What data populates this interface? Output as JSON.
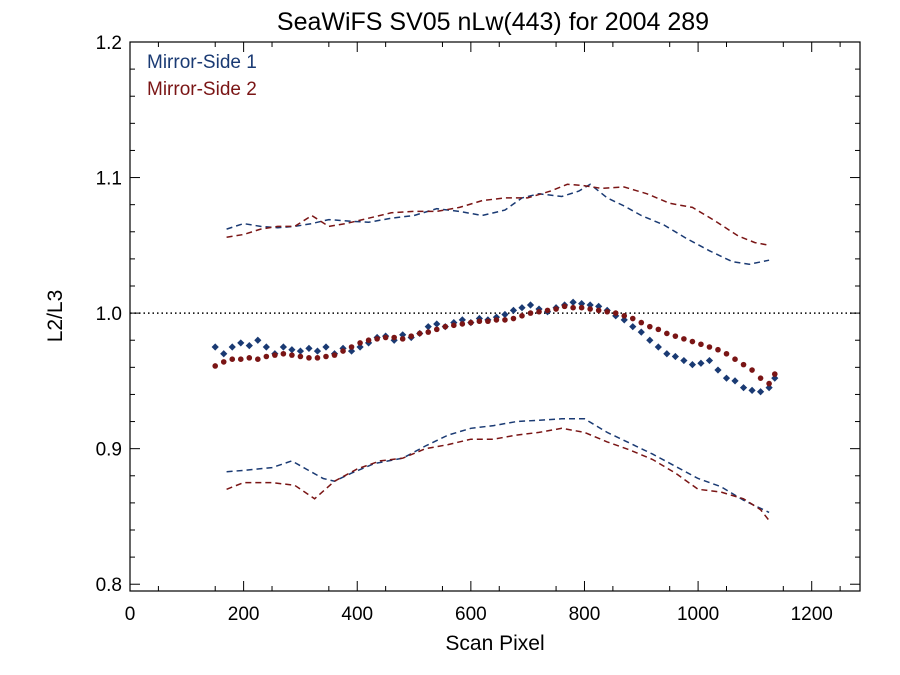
{
  "chart_data": {
    "type": "scatter",
    "title": "SeaWiFS SV05 nLw(443) for 2004 289",
    "xlabel": "Scan Pixel",
    "ylabel": "L2/L3",
    "xlim": [
      0,
      1285
    ],
    "ylim": [
      0.795,
      1.2
    ],
    "xticks": [
      0,
      200,
      400,
      600,
      800,
      1000,
      1200
    ],
    "xtick_labels": [
      "0",
      "200",
      "400",
      "600",
      "800",
      "1000",
      "1200"
    ],
    "yticks": [
      0.8,
      0.9,
      1.0,
      1.1,
      1.2
    ],
    "ytick_labels": [
      "0.8",
      "0.9",
      "1.0",
      "1.1",
      "1.2"
    ],
    "reference_line": {
      "y": 1.0,
      "style": "dotted"
    },
    "legend_position": "top-left",
    "grid": false,
    "series": [
      {
        "name": "Mirror-Side 1",
        "color": "#1a3a73",
        "points": [
          [
            150,
            0.975
          ],
          [
            165,
            0.97
          ],
          [
            180,
            0.975
          ],
          [
            195,
            0.978
          ],
          [
            210,
            0.976
          ],
          [
            225,
            0.98
          ],
          [
            240,
            0.975
          ],
          [
            255,
            0.97
          ],
          [
            270,
            0.975
          ],
          [
            285,
            0.973
          ],
          [
            300,
            0.972
          ],
          [
            315,
            0.974
          ],
          [
            330,
            0.972
          ],
          [
            345,
            0.975
          ],
          [
            360,
            0.97
          ],
          [
            375,
            0.974
          ],
          [
            390,
            0.972
          ],
          [
            405,
            0.975
          ],
          [
            420,
            0.978
          ],
          [
            435,
            0.982
          ],
          [
            450,
            0.983
          ],
          [
            465,
            0.98
          ],
          [
            480,
            0.984
          ],
          [
            495,
            0.982
          ],
          [
            510,
            0.985
          ],
          [
            525,
            0.99
          ],
          [
            540,
            0.992
          ],
          [
            555,
            0.99
          ],
          [
            570,
            0.993
          ],
          [
            585,
            0.995
          ],
          [
            600,
            0.993
          ],
          [
            615,
            0.996
          ],
          [
            630,
            0.995
          ],
          [
            645,
            0.997
          ],
          [
            660,
            0.999
          ],
          [
            675,
            1.002
          ],
          [
            690,
            1.004
          ],
          [
            705,
            1.006
          ],
          [
            720,
            1.003
          ],
          [
            735,
            1.001
          ],
          [
            750,
            1.004
          ],
          [
            765,
            1.006
          ],
          [
            780,
            1.008
          ],
          [
            795,
            1.007
          ],
          [
            810,
            1.006
          ],
          [
            825,
            1.005
          ],
          [
            840,
            1.002
          ],
          [
            855,
            0.998
          ],
          [
            870,
            0.995
          ],
          [
            885,
            0.99
          ],
          [
            900,
            0.986
          ],
          [
            915,
            0.98
          ],
          [
            930,
            0.975
          ],
          [
            945,
            0.97
          ],
          [
            960,
            0.968
          ],
          [
            975,
            0.965
          ],
          [
            990,
            0.962
          ],
          [
            1005,
            0.963
          ],
          [
            1020,
            0.965
          ],
          [
            1035,
            0.958
          ],
          [
            1050,
            0.952
          ],
          [
            1065,
            0.95
          ],
          [
            1080,
            0.945
          ],
          [
            1095,
            0.943
          ],
          [
            1110,
            0.942
          ],
          [
            1125,
            0.945
          ],
          [
            1135,
            0.952
          ]
        ],
        "upper_bound": [
          [
            170,
            1.062
          ],
          [
            200,
            1.066
          ],
          [
            230,
            1.064
          ],
          [
            260,
            1.063
          ],
          [
            290,
            1.064
          ],
          [
            320,
            1.066
          ],
          [
            350,
            1.069
          ],
          [
            380,
            1.068
          ],
          [
            420,
            1.067
          ],
          [
            460,
            1.07
          ],
          [
            500,
            1.072
          ],
          [
            540,
            1.077
          ],
          [
            580,
            1.075
          ],
          [
            620,
            1.072
          ],
          [
            660,
            1.076
          ],
          [
            690,
            1.085
          ],
          [
            720,
            1.088
          ],
          [
            760,
            1.086
          ],
          [
            790,
            1.09
          ],
          [
            810,
            1.095
          ],
          [
            840,
            1.085
          ],
          [
            870,
            1.079
          ],
          [
            900,
            1.072
          ],
          [
            940,
            1.065
          ],
          [
            980,
            1.055
          ],
          [
            1020,
            1.046
          ],
          [
            1060,
            1.038
          ],
          [
            1090,
            1.036
          ],
          [
            1125,
            1.039
          ]
        ],
        "lower_bound": [
          [
            170,
            0.883
          ],
          [
            200,
            0.884
          ],
          [
            250,
            0.886
          ],
          [
            285,
            0.891
          ],
          [
            310,
            0.885
          ],
          [
            340,
            0.878
          ],
          [
            360,
            0.876
          ],
          [
            390,
            0.882
          ],
          [
            430,
            0.889
          ],
          [
            480,
            0.893
          ],
          [
            520,
            0.902
          ],
          [
            560,
            0.91
          ],
          [
            600,
            0.915
          ],
          [
            640,
            0.917
          ],
          [
            680,
            0.92
          ],
          [
            720,
            0.921
          ],
          [
            760,
            0.922
          ],
          [
            800,
            0.922
          ],
          [
            840,
            0.912
          ],
          [
            880,
            0.904
          ],
          [
            920,
            0.896
          ],
          [
            960,
            0.887
          ],
          [
            1000,
            0.878
          ],
          [
            1040,
            0.872
          ],
          [
            1080,
            0.862
          ],
          [
            1125,
            0.853
          ]
        ]
      },
      {
        "name": "Mirror-Side 2",
        "color": "#7a1515",
        "points": [
          [
            150,
            0.961
          ],
          [
            165,
            0.964
          ],
          [
            180,
            0.966
          ],
          [
            195,
            0.966
          ],
          [
            210,
            0.967
          ],
          [
            225,
            0.966
          ],
          [
            240,
            0.968
          ],
          [
            255,
            0.969
          ],
          [
            270,
            0.97
          ],
          [
            285,
            0.969
          ],
          [
            300,
            0.968
          ],
          [
            315,
            0.967
          ],
          [
            330,
            0.967
          ],
          [
            345,
            0.968
          ],
          [
            360,
            0.969
          ],
          [
            375,
            0.972
          ],
          [
            390,
            0.975
          ],
          [
            405,
            0.978
          ],
          [
            420,
            0.98
          ],
          [
            435,
            0.981
          ],
          [
            450,
            0.982
          ],
          [
            465,
            0.982
          ],
          [
            480,
            0.981
          ],
          [
            495,
            0.983
          ],
          [
            510,
            0.985
          ],
          [
            525,
            0.986
          ],
          [
            540,
            0.988
          ],
          [
            555,
            0.99
          ],
          [
            570,
            0.991
          ],
          [
            585,
            0.992
          ],
          [
            600,
            0.993
          ],
          [
            615,
            0.994
          ],
          [
            630,
            0.994
          ],
          [
            645,
            0.995
          ],
          [
            660,
            0.995
          ],
          [
            675,
            0.996
          ],
          [
            690,
            0.998
          ],
          [
            705,
            1.0
          ],
          [
            720,
            1.001
          ],
          [
            735,
            1.002
          ],
          [
            750,
            1.003
          ],
          [
            765,
            1.005
          ],
          [
            780,
            1.004
          ],
          [
            795,
            1.004
          ],
          [
            810,
            1.003
          ],
          [
            825,
            1.002
          ],
          [
            840,
            1.001
          ],
          [
            855,
            1.0
          ],
          [
            870,
            0.998
          ],
          [
            885,
            0.996
          ],
          [
            900,
            0.993
          ],
          [
            915,
            0.99
          ],
          [
            930,
            0.988
          ],
          [
            945,
            0.985
          ],
          [
            960,
            0.983
          ],
          [
            975,
            0.981
          ],
          [
            990,
            0.979
          ],
          [
            1005,
            0.977
          ],
          [
            1020,
            0.975
          ],
          [
            1035,
            0.973
          ],
          [
            1050,
            0.97
          ],
          [
            1065,
            0.966
          ],
          [
            1080,
            0.962
          ],
          [
            1095,
            0.958
          ],
          [
            1110,
            0.952
          ],
          [
            1125,
            0.948
          ],
          [
            1135,
            0.955
          ]
        ],
        "upper_bound": [
          [
            170,
            1.056
          ],
          [
            200,
            1.058
          ],
          [
            230,
            1.062
          ],
          [
            260,
            1.064
          ],
          [
            290,
            1.064
          ],
          [
            320,
            1.072
          ],
          [
            350,
            1.064
          ],
          [
            380,
            1.066
          ],
          [
            420,
            1.07
          ],
          [
            460,
            1.074
          ],
          [
            500,
            1.075
          ],
          [
            540,
            1.075
          ],
          [
            580,
            1.078
          ],
          [
            620,
            1.083
          ],
          [
            660,
            1.085
          ],
          [
            700,
            1.085
          ],
          [
            740,
            1.09
          ],
          [
            770,
            1.095
          ],
          [
            800,
            1.094
          ],
          [
            830,
            1.092
          ],
          [
            870,
            1.093
          ],
          [
            910,
            1.088
          ],
          [
            950,
            1.081
          ],
          [
            990,
            1.078
          ],
          [
            1030,
            1.068
          ],
          [
            1070,
            1.057
          ],
          [
            1100,
            1.052
          ],
          [
            1125,
            1.05
          ]
        ],
        "lower_bound": [
          [
            170,
            0.87
          ],
          [
            200,
            0.875
          ],
          [
            250,
            0.875
          ],
          [
            290,
            0.873
          ],
          [
            325,
            0.863
          ],
          [
            360,
            0.876
          ],
          [
            400,
            0.885
          ],
          [
            440,
            0.891
          ],
          [
            480,
            0.893
          ],
          [
            520,
            0.9
          ],
          [
            560,
            0.903
          ],
          [
            600,
            0.907
          ],
          [
            640,
            0.907
          ],
          [
            680,
            0.91
          ],
          [
            720,
            0.912
          ],
          [
            760,
            0.915
          ],
          [
            800,
            0.912
          ],
          [
            840,
            0.905
          ],
          [
            880,
            0.899
          ],
          [
            920,
            0.892
          ],
          [
            960,
            0.882
          ],
          [
            1000,
            0.87
          ],
          [
            1040,
            0.868
          ],
          [
            1080,
            0.863
          ],
          [
            1110,
            0.855
          ],
          [
            1125,
            0.847
          ]
        ]
      }
    ]
  }
}
